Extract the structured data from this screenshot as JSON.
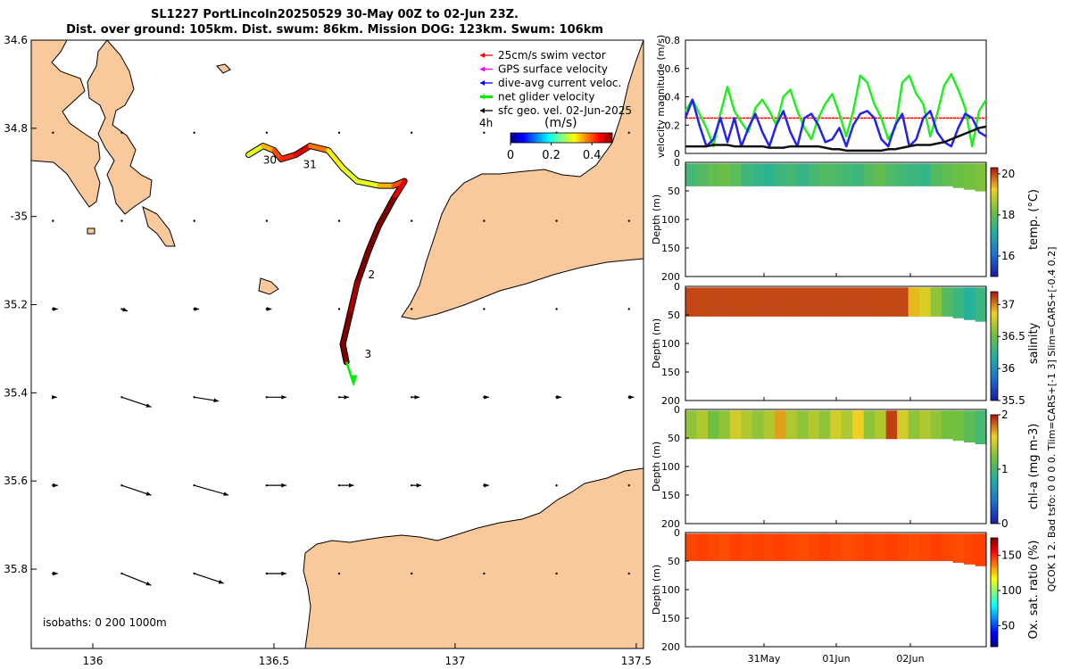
{
  "header": {
    "title_line1": "SL1227 PortLincoln20250529 30-May 00Z to 02-Jun 23Z.",
    "title_line2": "Dist. over ground: 105km. Dist. swum: 86km. Mission DOG: 123km. Swum: 106km"
  },
  "colors": {
    "land": "#f9c89b",
    "swim_vector": "#ff0000",
    "gps_velocity": "#ff00ff",
    "dive_avg": "#0000ff",
    "net_velocity": "#00ee00",
    "geo_vel": "#000000"
  },
  "map": {
    "xlim": [
      135.83,
      137.52
    ],
    "ylim": [
      35.98,
      34.6
    ],
    "xticks": [
      136,
      136.5,
      137,
      137.5
    ],
    "xtick_labels": [
      "136",
      "136.5",
      "137",
      "137.5"
    ],
    "yticks": [
      34.6,
      34.8,
      35,
      35.2,
      35.4,
      35.6,
      35.8
    ],
    "ytick_labels": [
      "34.6",
      "34.8",
      "-35",
      "35.2",
      "35.4",
      "35.6",
      "35.8"
    ],
    "isobath_label": "isobaths: 0   200  1000m",
    "legend": [
      {
        "label": "25cm/s swim vector",
        "color": "#ff0000"
      },
      {
        "label": "GPS surface velocity",
        "color": "#ff00ff"
      },
      {
        "label": "dive-avg current veloc.",
        "color": "#0000ff"
      },
      {
        "label": "net glider velocity",
        "color": "#00ee00"
      },
      {
        "label": "sfc geo. vel. 02-Jun-2025",
        "color": "#000000"
      }
    ],
    "interval_label": "4h",
    "colorbar": {
      "label": "(m/s)",
      "ticks": [
        "0",
        "0.2",
        "0.4"
      ],
      "range": [
        0,
        0.5
      ]
    },
    "track": [
      [
        136.43,
        34.86
      ],
      [
        136.47,
        34.84
      ],
      [
        136.5,
        34.85
      ],
      [
        136.52,
        34.87
      ],
      [
        136.56,
        34.86
      ],
      [
        136.6,
        34.84
      ],
      [
        136.65,
        34.85
      ],
      [
        136.69,
        34.89
      ],
      [
        136.73,
        34.92
      ],
      [
        136.79,
        34.93
      ],
      [
        136.83,
        34.93
      ],
      [
        136.86,
        34.92
      ],
      [
        136.83,
        34.96
      ],
      [
        136.79,
        35.02
      ],
      [
        136.76,
        35.08
      ],
      [
        136.73,
        35.15
      ],
      [
        136.71,
        35.22
      ],
      [
        136.69,
        35.29
      ],
      [
        136.7,
        35.33
      ]
    ],
    "track_speeds": [
      0.3,
      0.35,
      0.4,
      0.42,
      0.45,
      0.38,
      0.32,
      0.3,
      0.3,
      0.35,
      0.4,
      0.45,
      0.5,
      0.5,
      0.5,
      0.48,
      0.5,
      0.5,
      0.45
    ],
    "day_labels": [
      {
        "text": "30",
        "lon": 136.47,
        "lat": 34.88
      },
      {
        "text": "31",
        "lon": 136.58,
        "lat": 34.89
      },
      {
        "text": "2",
        "lon": 136.76,
        "lat": 35.14
      },
      {
        "text": "3",
        "lon": 136.75,
        "lat": 35.32
      }
    ],
    "geo_vectors": {
      "lons": [
        135.89,
        136.08,
        136.28,
        136.48,
        136.68,
        136.88,
        137.08,
        137.28,
        137.48
      ],
      "rows": [
        {
          "lat": 34.81,
          "u": [
            0,
            0,
            0,
            0,
            0,
            0,
            0,
            0,
            0
          ],
          "v": [
            0,
            0,
            0,
            0,
            0,
            0,
            0,
            0,
            0
          ]
        },
        {
          "lat": 35.01,
          "u": [
            0,
            0,
            0,
            0,
            0,
            0,
            0,
            0,
            0
          ],
          "v": [
            0,
            0,
            0,
            0,
            0,
            0,
            0,
            0,
            0
          ]
        },
        {
          "lat": 35.21,
          "u": [
            0.05,
            0.06,
            0.05,
            0.05,
            0,
            0,
            0,
            0,
            0
          ],
          "v": [
            0,
            -0.02,
            0,
            0,
            0,
            0,
            0,
            0,
            0
          ]
        },
        {
          "lat": 35.41,
          "u": [
            0.04,
            0.3,
            0.25,
            0.2,
            0.1,
            0.08,
            0.05,
            0.05,
            0.05
          ],
          "v": [
            0,
            -0.1,
            -0.04,
            0,
            0,
            0,
            0,
            0,
            0
          ]
        },
        {
          "lat": 35.61,
          "u": [
            0.05,
            0.3,
            0.35,
            0.2,
            0.15,
            0.1,
            0.05,
            0,
            0
          ],
          "v": [
            0,
            -0.1,
            -0.1,
            0,
            0,
            0,
            0,
            0,
            0
          ]
        },
        {
          "lat": 35.81,
          "u": [
            0.05,
            0.3,
            0.3,
            0.2,
            0,
            0,
            0,
            0,
            0
          ],
          "v": [
            0,
            -0.12,
            -0.1,
            0,
            0,
            0,
            0,
            0,
            0
          ]
        }
      ]
    }
  },
  "velocity_panel": {
    "ylabel": "velocity magnitude (m/s)",
    "ylim": [
      0,
      0.8
    ],
    "yticks": [
      0,
      0.2,
      0.4,
      0.6,
      0.8
    ],
    "ytick_labels": [
      "0",
      "0.2",
      "0.4",
      "0.6",
      "0.8"
    ],
    "swim_ref": 0.25,
    "green": [
      0.3,
      0.38,
      0.28,
      0.18,
      0.05,
      0.28,
      0.47,
      0.3,
      0.22,
      0.15,
      0.32,
      0.38,
      0.3,
      0.2,
      0.4,
      0.45,
      0.3,
      0.18,
      0.1,
      0.25,
      0.35,
      0.42,
      0.28,
      0.12,
      0.3,
      0.55,
      0.5,
      0.35,
      0.25,
      0.1,
      0.18,
      0.5,
      0.55,
      0.42,
      0.35,
      0.12,
      0.28,
      0.48,
      0.56,
      0.45,
      0.32,
      0.05,
      0.3,
      0.38
    ],
    "blue": [
      0.25,
      0.38,
      0.2,
      0.05,
      0.1,
      0.25,
      0.08,
      0.25,
      0.05,
      0.18,
      0.28,
      0.15,
      0.05,
      0.2,
      0.3,
      0.15,
      0.05,
      0.25,
      0.28,
      0.2,
      0.08,
      0.1,
      0.18,
      0.05,
      0.2,
      0.28,
      0.3,
      0.25,
      0.1,
      0.05,
      0.2,
      0.28,
      0.05,
      0.1,
      0.25,
      0.3,
      0.15,
      0.08,
      0.05,
      0.18,
      0.28,
      0.25,
      0.15,
      0.12
    ],
    "black": [
      0.05,
      0.05,
      0.05,
      0.05,
      0.06,
      0.06,
      0.06,
      0.05,
      0.05,
      0.05,
      0.05,
      0.05,
      0.04,
      0.04,
      0.04,
      0.05,
      0.05,
      0.05,
      0.05,
      0.05,
      0.04,
      0.03,
      0.03,
      0.02,
      0.02,
      0.02,
      0.02,
      0.02,
      0.02,
      0.03,
      0.03,
      0.04,
      0.05,
      0.06,
      0.06,
      0.06,
      0.07,
      0.08,
      0.1,
      0.12,
      0.14,
      0.16,
      0.18,
      0.19
    ]
  },
  "profiles": {
    "depth_label": "Depth (m)",
    "depth_ticks": [
      0,
      50,
      100,
      150,
      200
    ],
    "depth_tick_labels": [
      "0",
      "50",
      "100",
      "150",
      "200"
    ],
    "panels": [
      {
        "id": "temp",
        "cbar_label": "temp. (°C)",
        "cmin": 15,
        "cmax": 20.3,
        "cticks": [
          16,
          18,
          20
        ],
        "ctick_labels": [
          "16",
          "18",
          "20"
        ],
        "values": [
          17.6,
          17.8,
          18.0,
          18.1,
          17.9,
          17.5,
          17.4,
          17.3,
          17.5,
          17.6,
          17.4,
          17.6,
          17.8,
          17.7,
          17.6,
          17.5,
          17.8,
          18.0,
          17.7,
          17.6,
          17.5,
          17.4,
          17.8,
          18.0,
          18.1,
          18.2,
          18.3
        ]
      },
      {
        "id": "salinity",
        "cbar_label": "salinity",
        "cmin": 35.5,
        "cmax": 37.2,
        "cticks": [
          35.5,
          36,
          36.5,
          37
        ],
        "ctick_labels": [
          "35.5",
          "36",
          "36.5",
          "37"
        ],
        "values": [
          37.1,
          37.1,
          37.1,
          37.1,
          37.1,
          37.1,
          37.1,
          37.1,
          37.1,
          37.1,
          37.1,
          37.1,
          37.1,
          37.1,
          37.1,
          37.1,
          37.1,
          37.1,
          37.1,
          37.1,
          36.9,
          36.8,
          36.6,
          36.4,
          36.3,
          36.2,
          36.3
        ]
      },
      {
        "id": "chla",
        "cbar_label": "chl-a (mg m-3)",
        "cmin": 0,
        "cmax": 2,
        "cticks": [
          0,
          1,
          2
        ],
        "ctick_labels": [
          "0",
          "1",
          "2"
        ],
        "values": [
          1.3,
          1.4,
          1.2,
          1.3,
          1.5,
          1.4,
          1.3,
          1.4,
          1.7,
          1.4,
          1.3,
          1.4,
          1.3,
          1.5,
          1.4,
          1.6,
          1.3,
          1.4,
          1.9,
          1.5,
          1.3,
          1.4,
          1.3,
          1.2,
          1.2,
          1.1,
          1.0
        ]
      },
      {
        "id": "oxsat",
        "cbar_label": "Ox. sat. ratio (%)",
        "cmin": 20,
        "cmax": 175,
        "cticks": [
          50,
          100,
          150
        ],
        "ctick_labels": [
          "50",
          "100",
          "150"
        ],
        "values": [
          145,
          146,
          145,
          144,
          146,
          145,
          146,
          145,
          146,
          145,
          144,
          145,
          146,
          145,
          144,
          145,
          146,
          145,
          146,
          145,
          144,
          145,
          146,
          145,
          144,
          145,
          146
        ]
      }
    ],
    "time_ticks": [
      "31May",
      "01Jun",
      "02Jun"
    ],
    "side_note_1": "QCOK 1  2. Bad tsfo: 0  0  0  0. Tlim=CARS+[-1 3] Slim=CARS+[-0.4 0.2]"
  }
}
